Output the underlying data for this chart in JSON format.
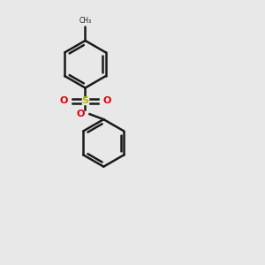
{
  "bg_color": "#e8e8e8",
  "line_color": "#1a1a1a",
  "S_color": "#b8b800",
  "O_color": "#e00000",
  "N_color": "#0000cc",
  "line_width": 1.8,
  "dbo": 0.12,
  "figsize": [
    3.0,
    3.0
  ],
  "dpi": 100,
  "xlim": [
    0,
    10
  ],
  "ylim": [
    0,
    10
  ]
}
